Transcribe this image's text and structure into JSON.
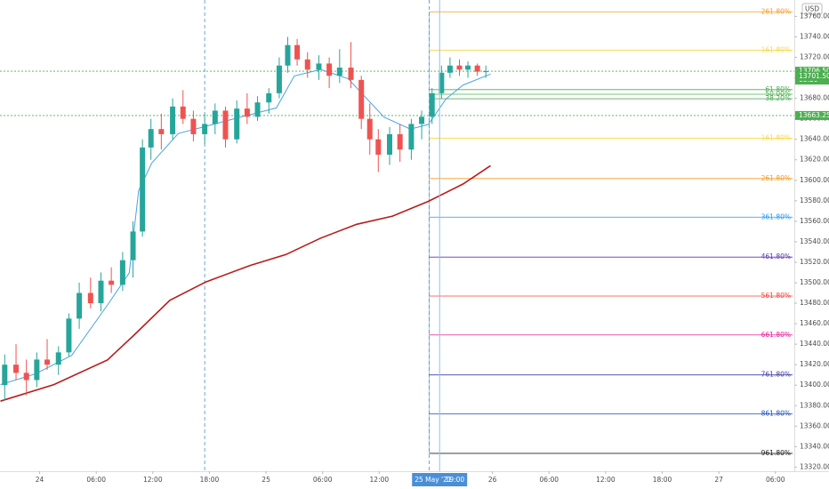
{
  "chart_data": {
    "type": "candlestick",
    "currency": "USD",
    "xlim": [
      -4.2,
      80
    ],
    "ylim": [
      13316,
      13776
    ],
    "xticks": [
      {
        "value": 0,
        "label": "24"
      },
      {
        "value": 6,
        "label": "06:00"
      },
      {
        "value": 12,
        "label": "12:00"
      },
      {
        "value": 18,
        "label": "18:00"
      },
      {
        "value": 24,
        "label": "25"
      },
      {
        "value": 30,
        "label": "06:00"
      },
      {
        "value": 36,
        "label": "12:00"
      },
      {
        "value": 48,
        "label": "26"
      },
      {
        "value": 54,
        "label": "06:00"
      },
      {
        "value": 60,
        "label": "12:00"
      },
      {
        "value": 66,
        "label": "18:00"
      },
      {
        "value": 72,
        "label": "27"
      },
      {
        "value": 78,
        "label": "06:00"
      }
    ],
    "yticks": [
      {
        "value": 13320,
        "label": "13320.00"
      },
      {
        "value": 13340,
        "label": "13340.00"
      },
      {
        "value": 13360,
        "label": "13360.00"
      },
      {
        "value": 13380,
        "label": "13380.00"
      },
      {
        "value": 13400,
        "label": "13400.00"
      },
      {
        "value": 13420,
        "label": "13420.00"
      },
      {
        "value": 13440,
        "label": "13440.00"
      },
      {
        "value": 13460,
        "label": "13460.00"
      },
      {
        "value": 13480,
        "label": "13480.00"
      },
      {
        "value": 13500,
        "label": "13500.00"
      },
      {
        "value": 13520,
        "label": "13520.00"
      },
      {
        "value": 13540,
        "label": "13540.00"
      },
      {
        "value": 13560,
        "label": "13560.00"
      },
      {
        "value": 13580,
        "label": "13580.00"
      },
      {
        "value": 13600,
        "label": "13600.00"
      },
      {
        "value": 13620,
        "label": "13620.00"
      },
      {
        "value": 13640,
        "label": "13640.00"
      },
      {
        "value": 13660,
        "label": "13660.00"
      },
      {
        "value": 13680,
        "label": "13680.00"
      },
      {
        "value": 13700,
        "label": "13700.00"
      },
      {
        "value": 13720,
        "label": "13720.00"
      },
      {
        "value": 13740,
        "label": "13740.00"
      },
      {
        "value": 13760,
        "label": "13760.00"
      }
    ],
    "up_color": "#26a69a",
    "down_color": "#ef5350",
    "candles": {
      "x": [
        -3.7,
        -2.5,
        -1.4,
        -0.3,
        0.8,
        2,
        3.1,
        4.2,
        5.4,
        6.5,
        7.6,
        8.8,
        9.9,
        10.9,
        11.8,
        12.9,
        14.1,
        15.2,
        16.3,
        17.5,
        18.6,
        19.7,
        20.9,
        22,
        23.1,
        24.3,
        25.4,
        26.3,
        27.3,
        28.4,
        29.6,
        30.7,
        31.8,
        33,
        34.1,
        35,
        35.9,
        37.1,
        38.2,
        39.4,
        40.5,
        41.6,
        42.6,
        43.5,
        44.5,
        45.4,
        46.4,
        47.3
      ],
      "open": [
        13400,
        13420,
        13412,
        13405,
        13425,
        13420,
        13432,
        13465,
        13490,
        13480,
        13502,
        13498,
        13522,
        13550,
        13632,
        13650,
        13645,
        13672,
        13660,
        13645,
        13655,
        13668,
        13640,
        13670,
        13662,
        13676,
        13685,
        13712,
        13732,
        13718,
        13708,
        13714,
        13702,
        13710,
        13698,
        13660,
        13640,
        13625,
        13645,
        13630,
        13655,
        13662,
        13685,
        13705,
        13712,
        13708,
        13712,
        13706
      ],
      "high": [
        13430,
        13440,
        13425,
        13432,
        13445,
        13438,
        13470,
        13500,
        13505,
        13510,
        13515,
        13530,
        13560,
        13640,
        13660,
        13665,
        13680,
        13688,
        13668,
        13665,
        13675,
        13672,
        13678,
        13685,
        13682,
        13690,
        13720,
        13740,
        13738,
        13725,
        13722,
        13720,
        13728,
        13735,
        13702,
        13675,
        13650,
        13652,
        13655,
        13660,
        13668,
        13690,
        13712,
        13720,
        13718,
        13716,
        13714,
        13712
      ],
      "low": [
        13385,
        13405,
        13390,
        13398,
        13415,
        13410,
        13428,
        13455,
        13475,
        13472,
        13490,
        13492,
        13505,
        13545,
        13620,
        13630,
        13640,
        13655,
        13638,
        13635,
        13645,
        13632,
        13636,
        13655,
        13658,
        13665,
        13680,
        13705,
        13712,
        13700,
        13698,
        13690,
        13695,
        13690,
        13650,
        13625,
        13608,
        13615,
        13618,
        13620,
        13640,
        13655,
        13680,
        13700,
        13702,
        13700,
        13702,
        13700
      ],
      "close": [
        13420,
        13412,
        13405,
        13425,
        13420,
        13432,
        13465,
        13490,
        13480,
        13502,
        13498,
        13522,
        13550,
        13632,
        13650,
        13645,
        13672,
        13660,
        13645,
        13655,
        13668,
        13640,
        13670,
        13662,
        13676,
        13685,
        13712,
        13732,
        13718,
        13708,
        13714,
        13702,
        13710,
        13698,
        13660,
        13640,
        13625,
        13645,
        13630,
        13655,
        13662,
        13685,
        13705,
        13712,
        13708,
        13712,
        13706,
        13706.5
      ]
    },
    "lines": [
      {
        "color": "#4aa3e0",
        "x": [
          -4.15,
          -0.4,
          3.4,
          7.2,
          9.5,
          10.5,
          11.9,
          14.7,
          17.6,
          21.3,
          25.1,
          27,
          29.8,
          32.7,
          36.5,
          39.3,
          41.2,
          43.1,
          44.9,
          47.8
        ],
        "values": [
          13400.5,
          13411.2,
          13429.1,
          13478.3,
          13509.6,
          13590.1,
          13617,
          13645.6,
          13652.7,
          13661.7,
          13670.6,
          13701.9,
          13708.2,
          13699.2,
          13661.7,
          13650,
          13654.5,
          13679.6,
          13693,
          13703.7
        ]
      },
      {
        "color": "#b71c1c",
        "x": [
          -4.15,
          1.5,
          7.2,
          10,
          13.8,
          17.6,
          22.3,
          26.1,
          29.8,
          33.6,
          37.4,
          41.2,
          44.9,
          47.8
        ],
        "values": [
          13384.4,
          13400.5,
          13424.7,
          13448.8,
          13482.8,
          13500.7,
          13516.8,
          13527.5,
          13543.6,
          13557,
          13565,
          13579.4,
          13596.4,
          13614.3
        ]
      }
    ],
    "session_lines": [
      17.5,
      41.3
    ],
    "crosshair": {
      "x": 42.4,
      "date": "25 May '21",
      "time": "19:00"
    },
    "price_lines": [
      {
        "value": 13706.5,
        "label": "13706.50",
        "countdown": "05:29",
        "color": "#4caf50",
        "dotted": true
      },
      {
        "value": 13701.5,
        "label": "13701.50",
        "color": "#4caf50",
        "dotted": false
      },
      {
        "value": 13663.25,
        "label": "13663.25",
        "color": "#4caf50",
        "dotted": true
      }
    ],
    "fib_start": 41.3,
    "fib_levels": [
      {
        "label": "261.80%",
        "value": 13764.5,
        "color": "#f59a23"
      },
      {
        "label": "161.80%",
        "value": 13727,
        "color": "#f5d84a"
      },
      {
        "label": "61.80%",
        "value": 13688.5,
        "color": "#4caf50"
      },
      {
        "label": "50.00%",
        "value": 13684,
        "color": "#4caf50"
      },
      {
        "label": "38.20%",
        "value": 13679.6,
        "color": "#4caf50"
      },
      {
        "label": "161.80%",
        "value": 13641,
        "color": "#f5d84a"
      },
      {
        "label": "261.80%",
        "value": 13601.7,
        "color": "#f59a23"
      },
      {
        "label": "361.80%",
        "value": 13564,
        "color": "#2196f3"
      },
      {
        "label": "461.80%",
        "value": 13525,
        "color": "#5e35b1"
      },
      {
        "label": "561.80%",
        "value": 13487,
        "color": "#f44336"
      },
      {
        "label": "661.80%",
        "value": 13449,
        "color": "#e91e9a"
      },
      {
        "label": "761.80%",
        "value": 13410,
        "color": "#3f3fa8"
      },
      {
        "label": "861.80%",
        "value": 13372,
        "color": "#1e50b4"
      },
      {
        "label": "961.80%",
        "value": 13333.4,
        "color": "#222222"
      }
    ]
  }
}
